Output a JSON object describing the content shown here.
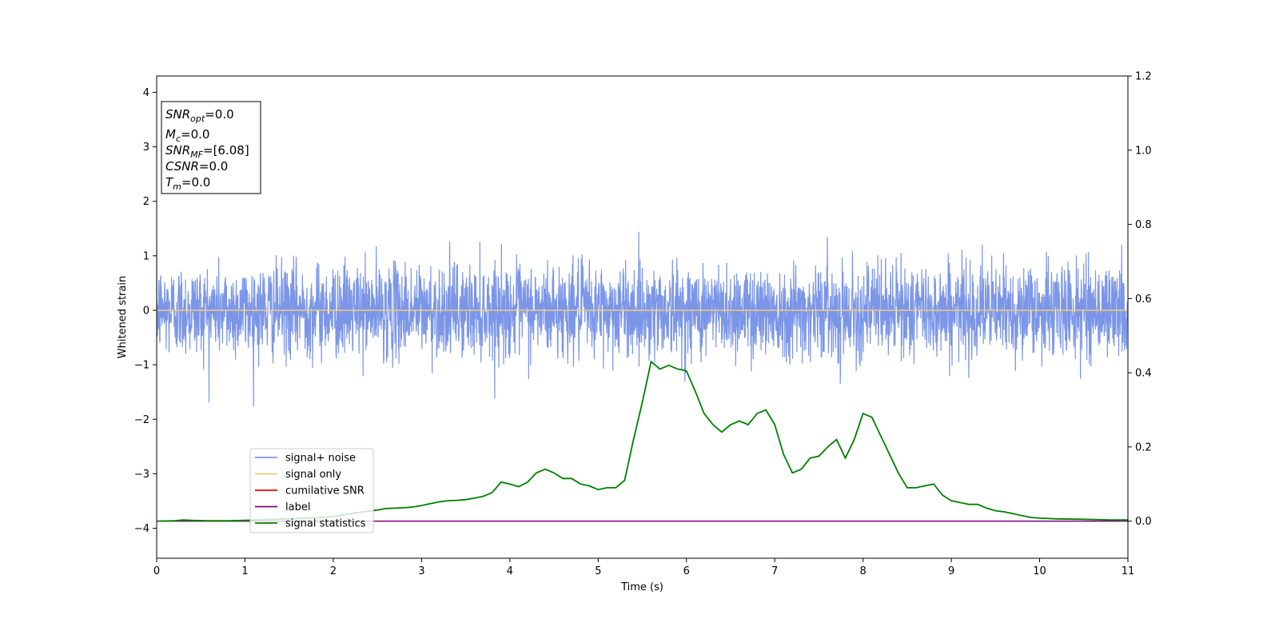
{
  "chart_data": {
    "type": "line",
    "xlabel": "Time (s)",
    "ylabel": "Whitened strain",
    "xlim": [
      0,
      11
    ],
    "ylim": [
      -4.55,
      4.3
    ],
    "y2lim": [
      -0.1,
      1.2
    ],
    "x_ticks": [
      "0",
      "1",
      "2",
      "3",
      "4",
      "5",
      "6",
      "7",
      "8",
      "9",
      "10",
      "11"
    ],
    "y_ticks": [
      "4",
      "3",
      "2",
      "1",
      "0",
      "−1",
      "−2",
      "−3",
      "−4"
    ],
    "y2_ticks": [
      "1.2",
      "1.0",
      "0.8",
      "0.6",
      "0.4",
      "0.2",
      "0.0"
    ],
    "annotation": {
      "snr_opt": {
        "base": "SNR",
        "sub": "opt",
        "value": "=0.0"
      },
      "mc": {
        "base": "M",
        "sub": "c",
        "value": "=0.0"
      },
      "snr_mf": {
        "base": "SNR",
        "sub": "MF",
        "value": "=[6.08]"
      },
      "csnr": {
        "base": "CSNR",
        "value": "=0.0"
      },
      "tm": {
        "base": "T",
        "sub": "m",
        "value": "=0.0"
      }
    },
    "legend": [
      "signal+ noise",
      "signal only",
      "cumilative SNR",
      "label",
      "signal statistics"
    ],
    "colors": {
      "noise": "#7b96e8",
      "signal": "#f5c97a",
      "cumulative": "#ff0000",
      "label": "#800080",
      "statistics": "#008000"
    },
    "series": [
      {
        "name": "signal+ noise",
        "axis": "left",
        "description_amplitude_std": 0.45,
        "x_range": [
          0,
          11
        ]
      },
      {
        "name": "signal only",
        "axis": "left",
        "x": [
          0,
          11
        ],
        "y": [
          0,
          0
        ]
      },
      {
        "name": "label",
        "axis": "right",
        "x": [
          0,
          11
        ],
        "y": [
          0,
          0
        ]
      },
      {
        "name": "signal statistics",
        "axis": "right",
        "x": [
          0,
          0.2,
          0.3,
          0.4,
          0.6,
          0.8,
          1.0,
          1.2,
          1.5,
          1.8,
          2.0,
          2.1,
          2.2,
          2.3,
          2.4,
          2.5,
          2.6,
          2.7,
          2.8,
          2.9,
          3.0,
          3.1,
          3.2,
          3.3,
          3.4,
          3.5,
          3.6,
          3.7,
          3.8,
          3.9,
          4.0,
          4.1,
          4.2,
          4.3,
          4.4,
          4.5,
          4.6,
          4.7,
          4.8,
          4.9,
          5.0,
          5.1,
          5.2,
          5.3,
          5.4,
          5.5,
          5.6,
          5.7,
          5.8,
          5.9,
          6.0,
          6.1,
          6.2,
          6.3,
          6.4,
          6.5,
          6.6,
          6.7,
          6.8,
          6.9,
          7.0,
          7.1,
          7.2,
          7.3,
          7.4,
          7.5,
          7.6,
          7.7,
          7.8,
          7.9,
          8.0,
          8.1,
          8.2,
          8.3,
          8.4,
          8.5,
          8.6,
          8.7,
          8.8,
          8.9,
          9.0,
          9.1,
          9.2,
          9.3,
          9.4,
          9.5,
          9.6,
          9.7,
          9.8,
          9.9,
          10.0,
          10.2,
          10.5,
          10.8,
          11.0
        ],
        "y": [
          0,
          0.001,
          0.003,
          0.002,
          0.001,
          0.001,
          0.002,
          0.004,
          0.006,
          0.009,
          0.012,
          0.016,
          0.02,
          0.024,
          0.027,
          0.03,
          0.034,
          0.035,
          0.036,
          0.038,
          0.042,
          0.047,
          0.052,
          0.055,
          0.056,
          0.058,
          0.062,
          0.067,
          0.077,
          0.105,
          0.1,
          0.093,
          0.105,
          0.13,
          0.14,
          0.13,
          0.115,
          0.115,
          0.1,
          0.095,
          0.085,
          0.09,
          0.09,
          0.11,
          0.22,
          0.32,
          0.43,
          0.41,
          0.42,
          0.41,
          0.405,
          0.35,
          0.29,
          0.26,
          0.24,
          0.26,
          0.27,
          0.26,
          0.29,
          0.3,
          0.26,
          0.18,
          0.13,
          0.14,
          0.17,
          0.175,
          0.2,
          0.22,
          0.17,
          0.22,
          0.29,
          0.28,
          0.23,
          0.18,
          0.13,
          0.09,
          0.09,
          0.095,
          0.1,
          0.07,
          0.055,
          0.05,
          0.045,
          0.045,
          0.035,
          0.028,
          0.025,
          0.02,
          0.015,
          0.01,
          0.008,
          0.006,
          0.005,
          0.003,
          0.003
        ]
      }
    ]
  }
}
